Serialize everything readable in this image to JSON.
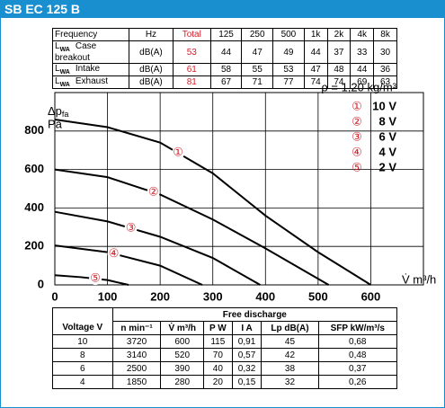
{
  "header": {
    "title": "SB EC 125 B"
  },
  "sound_table": {
    "columns": [
      "Frequency",
      "Hz",
      "Total",
      "125",
      "250",
      "500",
      "1k",
      "2k",
      "4k",
      "8k"
    ],
    "rows": [
      {
        "symbol": "L",
        "sub": "WA",
        "label": "Case breakout",
        "unit": "dB(A)",
        "values": [
          53,
          44,
          47,
          49,
          44,
          37,
          33,
          30
        ]
      },
      {
        "symbol": "L",
        "sub": "WA",
        "label": "Intake",
        "unit": "dB(A)",
        "values": [
          61,
          58,
          55,
          53,
          47,
          48,
          44,
          36
        ]
      },
      {
        "symbol": "L",
        "sub": "WA",
        "label": "Exhaust",
        "unit": "dB(A)",
        "values": [
          81,
          67,
          71,
          77,
          74,
          74,
          69,
          63
        ]
      }
    ]
  },
  "chart_data": {
    "type": "line",
    "density": "ρ = 1,20 kg/m³",
    "y_label": "Δp",
    "y_label_sub": "fa",
    "y_unit": "Pa",
    "x_label": "V̇ m³/h",
    "xlim": [
      0,
      700
    ],
    "ylim": [
      0,
      1000
    ],
    "xticks": [
      0,
      100,
      200,
      300,
      400,
      500,
      600
    ],
    "yticks": [
      0,
      200,
      400,
      600,
      800
    ],
    "grid": true,
    "series": [
      {
        "name": "10 V",
        "marker": "①",
        "color": "#000000",
        "x": [
          0,
          100,
          200,
          300,
          400,
          500,
          600
        ],
        "values": [
          860,
          820,
          740,
          580,
          360,
          170,
          0
        ]
      },
      {
        "name": "8 V",
        "marker": "②",
        "color": "#000000",
        "x": [
          0,
          100,
          200,
          300,
          400,
          520
        ],
        "values": [
          600,
          560,
          470,
          340,
          190,
          0
        ]
      },
      {
        "name": "6 V",
        "marker": "③",
        "color": "#000000",
        "x": [
          0,
          100,
          200,
          300,
          390
        ],
        "values": [
          380,
          330,
          250,
          140,
          0
        ]
      },
      {
        "name": "4 V",
        "marker": "④",
        "color": "#000000",
        "x": [
          0,
          100,
          200,
          280
        ],
        "values": [
          205,
          170,
          100,
          0
        ]
      },
      {
        "name": "2 V",
        "marker": "⑤",
        "color": "#000000",
        "x": [
          0,
          50,
          100,
          140
        ],
        "values": [
          50,
          40,
          25,
          0
        ]
      }
    ]
  },
  "performance_table": {
    "group_header": "Free discharge",
    "columns": [
      "Voltage V",
      "n min⁻¹",
      "V̇ m³/h",
      "P W",
      "I A",
      "Lp dB(A)",
      "SFP kW/m³/s"
    ],
    "rows": [
      [
        "10",
        "3720",
        "600",
        "115",
        "0,91",
        "45",
        "0,68"
      ],
      [
        "8",
        "3140",
        "520",
        "70",
        "0,57",
        "42",
        "0,48"
      ],
      [
        "6",
        "2500",
        "390",
        "40",
        "0,32",
        "38",
        "0,37"
      ],
      [
        "4",
        "1850",
        "280",
        "20",
        "0,15",
        "32",
        "0,26"
      ]
    ]
  }
}
